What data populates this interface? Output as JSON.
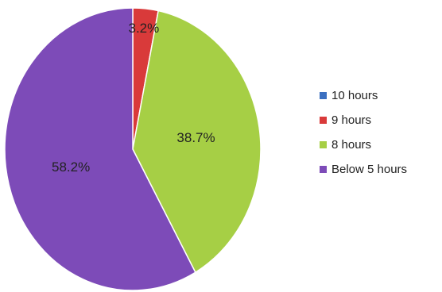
{
  "chart_data": {
    "type": "pie",
    "title": "",
    "legend_position": "right",
    "categories": [
      "10 hours",
      "9 hours",
      "8 hours",
      "Below 5 hours"
    ],
    "values": [
      0.0,
      3.2,
      38.7,
      58.2
    ],
    "data_labels": [
      "",
      "3.2%",
      "38.7%",
      "58.2%"
    ],
    "colors": [
      "#3b6fc0",
      "#d93a3a",
      "#a6cf45",
      "#7d4bb8"
    ],
    "start_angle_deg": 0,
    "direction": "clockwise"
  }
}
